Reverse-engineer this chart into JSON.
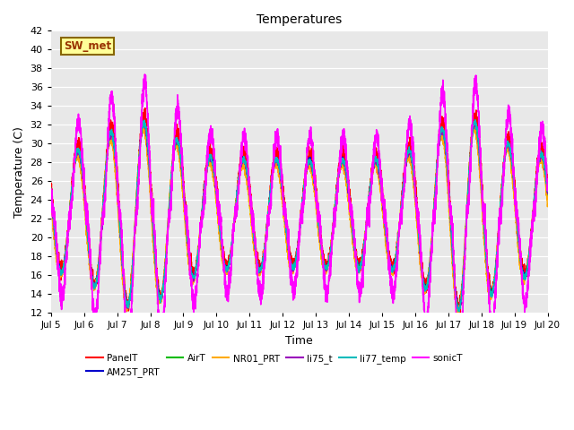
{
  "title": "Temperatures",
  "xlabel": "Time",
  "ylabel": "Temperature (C)",
  "ylim": [
    12,
    42
  ],
  "xlim": [
    0,
    15
  ],
  "xtick_labels": [
    "Jul 5",
    "Jul 6",
    "Jul 7",
    "Jul 8",
    "Jul 9",
    "Jul 10",
    "Jul 11",
    "Jul 12",
    "Jul 13",
    "Jul 14",
    "Jul 15",
    "Jul 16",
    "Jul 17",
    "Jul 18",
    "Jul 19",
    "Jul 20"
  ],
  "xtick_positions": [
    0,
    1,
    2,
    3,
    4,
    5,
    6,
    7,
    8,
    9,
    10,
    11,
    12,
    13,
    14,
    15
  ],
  "annotation_text": "SW_met",
  "annotation_facecolor": "#FFFF99",
  "annotation_edgecolor": "#886600",
  "background_color": "#E8E8E8",
  "series_order": [
    "PanelT",
    "AM25T_PRT",
    "AirT",
    "NR01_PRT",
    "li75_t",
    "li77_temp",
    "sonicT"
  ],
  "series": {
    "PanelT": {
      "color": "#FF0000",
      "lw": 1.0
    },
    "AM25T_PRT": {
      "color": "#0000CC",
      "lw": 1.0
    },
    "AirT": {
      "color": "#00BB00",
      "lw": 1.0
    },
    "NR01_PRT": {
      "color": "#FFAA00",
      "lw": 1.0
    },
    "li75_t": {
      "color": "#9900BB",
      "lw": 1.0
    },
    "li77_temp": {
      "color": "#00BBBB",
      "lw": 1.0
    },
    "sonicT": {
      "color": "#FF00FF",
      "lw": 1.2
    }
  },
  "figsize": [
    6.4,
    4.8
  ],
  "dpi": 100
}
